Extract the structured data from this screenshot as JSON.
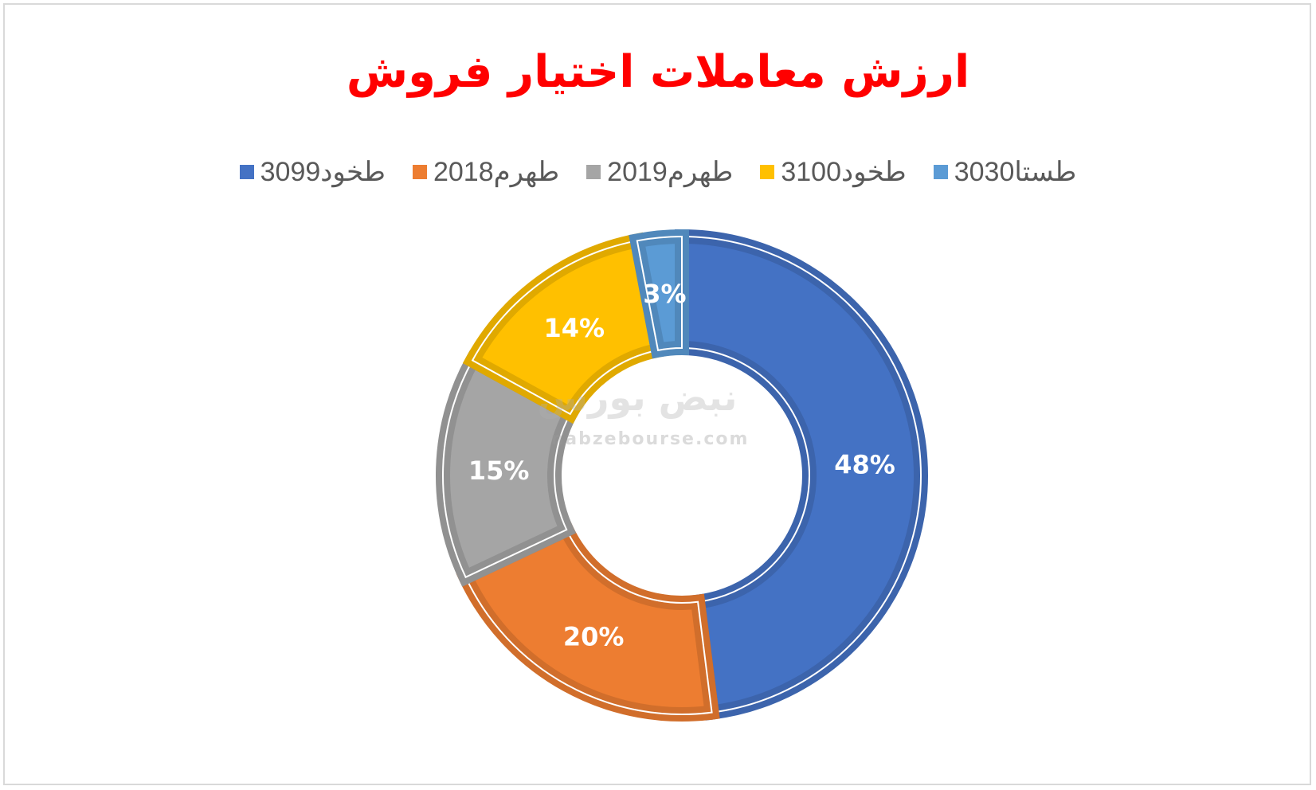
{
  "chart_data": {
    "type": "pie",
    "variant": "donut",
    "title": "ارزش معاملات اختیار فروش",
    "legend_position": "top",
    "series": [
      {
        "name": "طخود3099",
        "value": 48,
        "label": "48%",
        "color": "#4472C4"
      },
      {
        "name": "طهرم2018",
        "value": 20,
        "label": "20%",
        "color": "#ED7D31"
      },
      {
        "name": "طهرم2019",
        "value": 15,
        "label": "15%",
        "color": "#A5A5A5"
      },
      {
        "name": "طخود3100",
        "value": 14,
        "label": "14%",
        "color": "#FFC000"
      },
      {
        "name": "طستا3030",
        "value": 3,
        "label": "3%",
        "color": "#5B9BD5"
      }
    ]
  },
  "watermark": {
    "site": "nabzebourse.com",
    "logo_text": "نبض بورس"
  }
}
